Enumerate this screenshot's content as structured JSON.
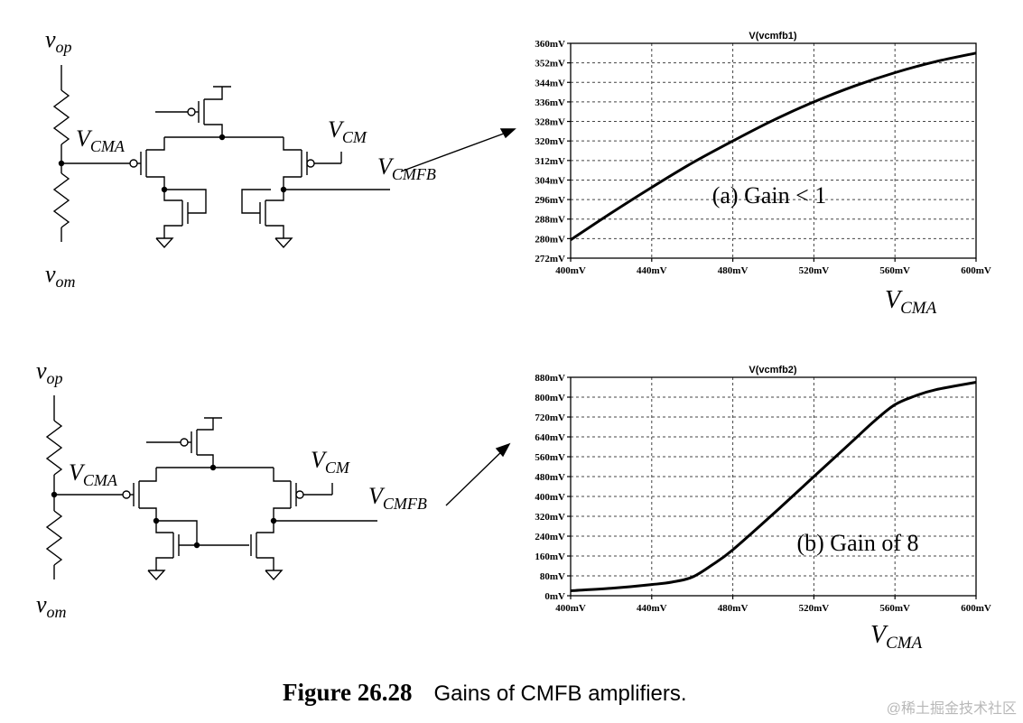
{
  "circuits": [
    {
      "labels": {
        "vop": {
          "main": "v",
          "sub": "op"
        },
        "vom": {
          "main": "v",
          "sub": "om"
        },
        "vcma": {
          "main": "V",
          "sub": "CMA"
        },
        "vcm": {
          "main": "V",
          "sub": "CM"
        },
        "vcmfb": {
          "main": "V",
          "sub": "CMFB"
        }
      }
    },
    {
      "labels": {
        "vop": {
          "main": "v",
          "sub": "op"
        },
        "vom": {
          "main": "v",
          "sub": "om"
        },
        "vcma": {
          "main": "V",
          "sub": "CMA"
        },
        "vcm": {
          "main": "V",
          "sub": "CM"
        },
        "vcmfb": {
          "main": "V",
          "sub": "CMFB"
        }
      }
    }
  ],
  "chart_data": [
    {
      "type": "line",
      "title": "V(vcmfb1)",
      "x_ticks": [
        "400mV",
        "440mV",
        "480mV",
        "520mV",
        "560mV",
        "600mV"
      ],
      "y_ticks": [
        "360mV",
        "352mV",
        "344mV",
        "336mV",
        "328mV",
        "320mV",
        "312mV",
        "304mV",
        "296mV",
        "288mV",
        "280mV",
        "272mV"
      ],
      "xlim": [
        400,
        600
      ],
      "ylim": [
        272,
        360
      ],
      "x_unit": "mV",
      "y_unit": "mV",
      "grid": true,
      "xlabel": {
        "main": "V",
        "sub": "CMA"
      },
      "annotation": "(a) Gain < 1",
      "series": [
        {
          "x": [
            400,
            420,
            440,
            460,
            480,
            500,
            520,
            540,
            560,
            580,
            600
          ],
          "y": [
            279.5,
            290.5,
            301,
            311,
            320,
            328.5,
            336,
            342.5,
            348,
            352.5,
            356
          ]
        }
      ]
    },
    {
      "type": "line",
      "title": "V(vcmfb2)",
      "x_ticks": [
        "400mV",
        "440mV",
        "480mV",
        "520mV",
        "560mV",
        "600mV"
      ],
      "y_ticks": [
        "880mV",
        "800mV",
        "720mV",
        "640mV",
        "560mV",
        "480mV",
        "400mV",
        "320mV",
        "240mV",
        "160mV",
        "80mV",
        "0mV"
      ],
      "xlim": [
        400,
        600
      ],
      "ylim": [
        0,
        880
      ],
      "x_unit": "mV",
      "y_unit": "mV",
      "grid": true,
      "xlabel": {
        "main": "V",
        "sub": "CMA"
      },
      "annotation": "(b) Gain of 8",
      "series": [
        {
          "x": [
            400,
            420,
            440,
            450,
            460,
            470,
            480,
            500,
            520,
            540,
            550,
            560,
            570,
            580,
            600
          ],
          "y": [
            20,
            30,
            45,
            55,
            75,
            125,
            185,
            330,
            480,
            630,
            705,
            770,
            805,
            830,
            860
          ]
        }
      ]
    }
  ],
  "caption": {
    "label": "Figure 26.28",
    "text": "Gains of CMFB amplifiers."
  },
  "watermark": "@稀土掘金技术社区"
}
